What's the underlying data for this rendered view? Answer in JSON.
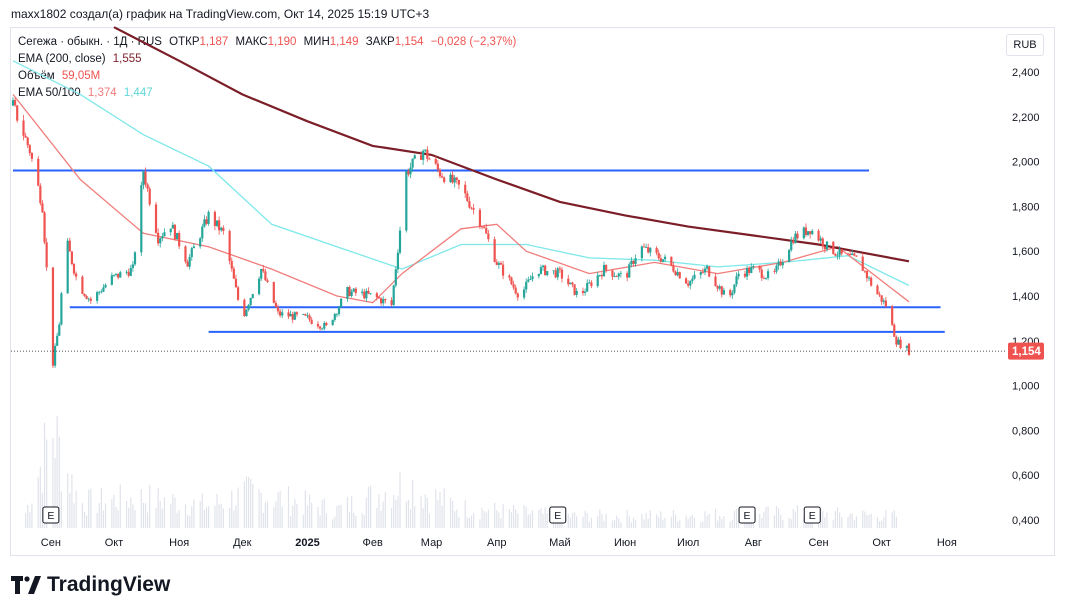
{
  "header": {
    "text": "maxx1802 создал(а) график на TradingView.com, Окт 14, 2025 15:19 UTC+3"
  },
  "legend": {
    "symbol": "Сегежа · обыкн. · 1Д · RUS",
    "open_label": "ОТКР",
    "open_value": "1,187",
    "high_label": "МАКС",
    "high_value": "1,190",
    "low_label": "МИН",
    "low_value": "1,149",
    "close_label": "ЗАКР",
    "close_value": "1,154",
    "change": "−0,028 (−2,37%)",
    "ema200_label": "EMA (200, close)",
    "ema200_value": "1,555",
    "volume_label": "Объём",
    "volume_value": "59,05M",
    "ema50_100_label": "EMA 50/100",
    "ema50_value": "1,374",
    "ema100_value": "1,447"
  },
  "currency_button": "RUB",
  "price_badge": "1,154",
  "logo": {
    "text": "TradingView"
  },
  "colors": {
    "up": "#26a69a",
    "down": "#ef5350",
    "ema50": "#f07d7b",
    "ema100": "#7ee8ea",
    "ema200": "#7b1e28",
    "hline": "#2962ff",
    "badge": "#ef5350"
  },
  "chart_data": {
    "type": "candlestick",
    "title": "Сегежа · обыкн. · 1Д · RUS",
    "y_axis": {
      "ticks": [
        "2,400",
        "2,200",
        "2,000",
        "1,800",
        "1,600",
        "1,400",
        "1,200",
        "1,000",
        "0,800",
        "0,600",
        "0,400"
      ],
      "tick_values": [
        2.4,
        2.2,
        2.0,
        1.8,
        1.6,
        1.4,
        1.2,
        1.0,
        0.8,
        0.6,
        0.4
      ],
      "ylim": [
        0.37,
        2.52
      ],
      "currency": "RUB"
    },
    "x_axis": {
      "labels": [
        "Сен",
        "Окт",
        "Ноя",
        "Дек",
        "2025",
        "Фев",
        "Мар",
        "Апр",
        "Май",
        "Июн",
        "Июл",
        "Авг",
        "Сен",
        "Окт",
        "Ноя"
      ],
      "dates": [
        "2024-09-01",
        "2024-10-01",
        "2024-11-01",
        "2024-12-01",
        "2025-01-01",
        "2025-02-01",
        "2025-03-01",
        "2025-04-01",
        "2025-05-01",
        "2025-06-01",
        "2025-07-01",
        "2025-08-01",
        "2025-09-01",
        "2025-10-01",
        "2025-11-01"
      ]
    },
    "price_path": [
      [
        "2024-08-14",
        2.25
      ],
      [
        "2024-08-22",
        2.05
      ],
      [
        "2024-08-28",
        1.8
      ],
      [
        "2024-09-02",
        1.1
      ],
      [
        "2024-09-05",
        1.28
      ],
      [
        "2024-09-08",
        1.66
      ],
      [
        "2024-09-14",
        1.45
      ],
      [
        "2024-09-20",
        1.38
      ],
      [
        "2024-09-30",
        1.48
      ],
      [
        "2024-10-10",
        1.52
      ],
      [
        "2024-10-15",
        1.96
      ],
      [
        "2024-10-22",
        1.66
      ],
      [
        "2024-10-28",
        1.72
      ],
      [
        "2024-11-05",
        1.55
      ],
      [
        "2024-11-15",
        1.76
      ],
      [
        "2024-11-22",
        1.68
      ],
      [
        "2024-12-01",
        1.3
      ],
      [
        "2024-12-10",
        1.52
      ],
      [
        "2024-12-18",
        1.32
      ],
      [
        "2025-01-01",
        1.3
      ],
      [
        "2025-01-10",
        1.26
      ],
      [
        "2025-01-20",
        1.42
      ],
      [
        "2025-02-01",
        1.4
      ],
      [
        "2025-02-10",
        1.36
      ],
      [
        "2025-02-17",
        1.95
      ],
      [
        "2025-02-25",
        2.05
      ],
      [
        "2025-03-05",
        1.95
      ],
      [
        "2025-03-15",
        1.88
      ],
      [
        "2025-03-25",
        1.72
      ],
      [
        "2025-04-01",
        1.55
      ],
      [
        "2025-04-12",
        1.4
      ],
      [
        "2025-04-20",
        1.52
      ],
      [
        "2025-05-01",
        1.5
      ],
      [
        "2025-05-10",
        1.4
      ],
      [
        "2025-05-22",
        1.52
      ],
      [
        "2025-06-01",
        1.48
      ],
      [
        "2025-06-08",
        1.62
      ],
      [
        "2025-06-20",
        1.56
      ],
      [
        "2025-07-01",
        1.46
      ],
      [
        "2025-07-10",
        1.52
      ],
      [
        "2025-07-20",
        1.38
      ],
      [
        "2025-07-25",
        1.5
      ],
      [
        "2025-08-01",
        1.52
      ],
      [
        "2025-08-10",
        1.48
      ],
      [
        "2025-08-20",
        1.66
      ],
      [
        "2025-08-28",
        1.7
      ],
      [
        "2025-09-05",
        1.62
      ],
      [
        "2025-09-12",
        1.58
      ],
      [
        "2025-09-20",
        1.56
      ],
      [
        "2025-09-28",
        1.42
      ],
      [
        "2025-10-03",
        1.36
      ],
      [
        "2025-10-08",
        1.2
      ],
      [
        "2025-10-14",
        1.154
      ]
    ],
    "last_candle": {
      "date": "2025-10-14",
      "open": 1.187,
      "high": 1.19,
      "low": 1.149,
      "close": 1.154
    },
    "ema200": [
      [
        "2024-10-01",
        2.6
      ],
      [
        "2024-11-01",
        2.45
      ],
      [
        "2024-12-01",
        2.3
      ],
      [
        "2025-01-01",
        2.18
      ],
      [
        "2025-02-01",
        2.07
      ],
      [
        "2025-03-01",
        2.03
      ],
      [
        "2025-04-01",
        1.92
      ],
      [
        "2025-05-01",
        1.82
      ],
      [
        "2025-06-01",
        1.76
      ],
      [
        "2025-07-01",
        1.71
      ],
      [
        "2025-08-01",
        1.67
      ],
      [
        "2025-09-01",
        1.63
      ],
      [
        "2025-10-14",
        1.555
      ]
    ],
    "ema100": [
      [
        "2024-08-14",
        2.45
      ],
      [
        "2024-09-15",
        2.3
      ],
      [
        "2024-10-15",
        2.12
      ],
      [
        "2024-11-15",
        1.98
      ],
      [
        "2024-12-15",
        1.72
      ],
      [
        "2025-01-15",
        1.62
      ],
      [
        "2025-02-15",
        1.52
      ],
      [
        "2025-03-15",
        1.63
      ],
      [
        "2025-04-15",
        1.63
      ],
      [
        "2025-05-15",
        1.57
      ],
      [
        "2025-06-15",
        1.56
      ],
      [
        "2025-07-15",
        1.53
      ],
      [
        "2025-08-15",
        1.55
      ],
      [
        "2025-09-15",
        1.58
      ],
      [
        "2025-10-14",
        1.447
      ]
    ],
    "ema50": [
      [
        "2024-08-14",
        2.3
      ],
      [
        "2024-09-15",
        1.92
      ],
      [
        "2024-10-15",
        1.68
      ],
      [
        "2024-11-15",
        1.62
      ],
      [
        "2024-12-15",
        1.52
      ],
      [
        "2025-01-15",
        1.4
      ],
      [
        "2025-02-01",
        1.37
      ],
      [
        "2025-02-15",
        1.5
      ],
      [
        "2025-03-15",
        1.7
      ],
      [
        "2025-04-01",
        1.72
      ],
      [
        "2025-04-15",
        1.6
      ],
      [
        "2025-05-15",
        1.5
      ],
      [
        "2025-06-15",
        1.55
      ],
      [
        "2025-07-15",
        1.5
      ],
      [
        "2025-08-15",
        1.55
      ],
      [
        "2025-09-10",
        1.62
      ],
      [
        "2025-10-14",
        1.374
      ]
    ],
    "volume_max_rub": 800000000,
    "volume": [
      [
        "2024-08-20",
        0.15
      ],
      [
        "2024-09-02",
        1.0
      ],
      [
        "2024-09-06",
        0.7
      ],
      [
        "2024-09-15",
        0.25
      ],
      [
        "2024-10-15",
        0.3
      ],
      [
        "2024-11-15",
        0.22
      ],
      [
        "2024-12-05",
        0.35
      ],
      [
        "2025-01-15",
        0.18
      ],
      [
        "2025-02-18",
        0.45
      ],
      [
        "2025-02-25",
        0.35
      ],
      [
        "2025-03-15",
        0.2
      ],
      [
        "2025-05-01",
        0.12
      ],
      [
        "2025-06-15",
        0.12
      ],
      [
        "2025-08-20",
        0.15
      ],
      [
        "2025-10-08",
        0.12
      ]
    ],
    "earnings_markers": [
      "2024-09-01",
      "2025-04-30",
      "2025-07-29",
      "2025-08-29"
    ],
    "marker_label": "E",
    "horizontal_lines": [
      {
        "value": 1.96,
        "from": "2024-08-14",
        "to": "2025-09-25"
      },
      {
        "value": 1.35,
        "from": "2024-09-10",
        "to": "2025-10-29"
      },
      {
        "value": 1.24,
        "from": "2024-11-15",
        "to": "2025-10-31"
      }
    ],
    "last_price_line": 1.154
  }
}
